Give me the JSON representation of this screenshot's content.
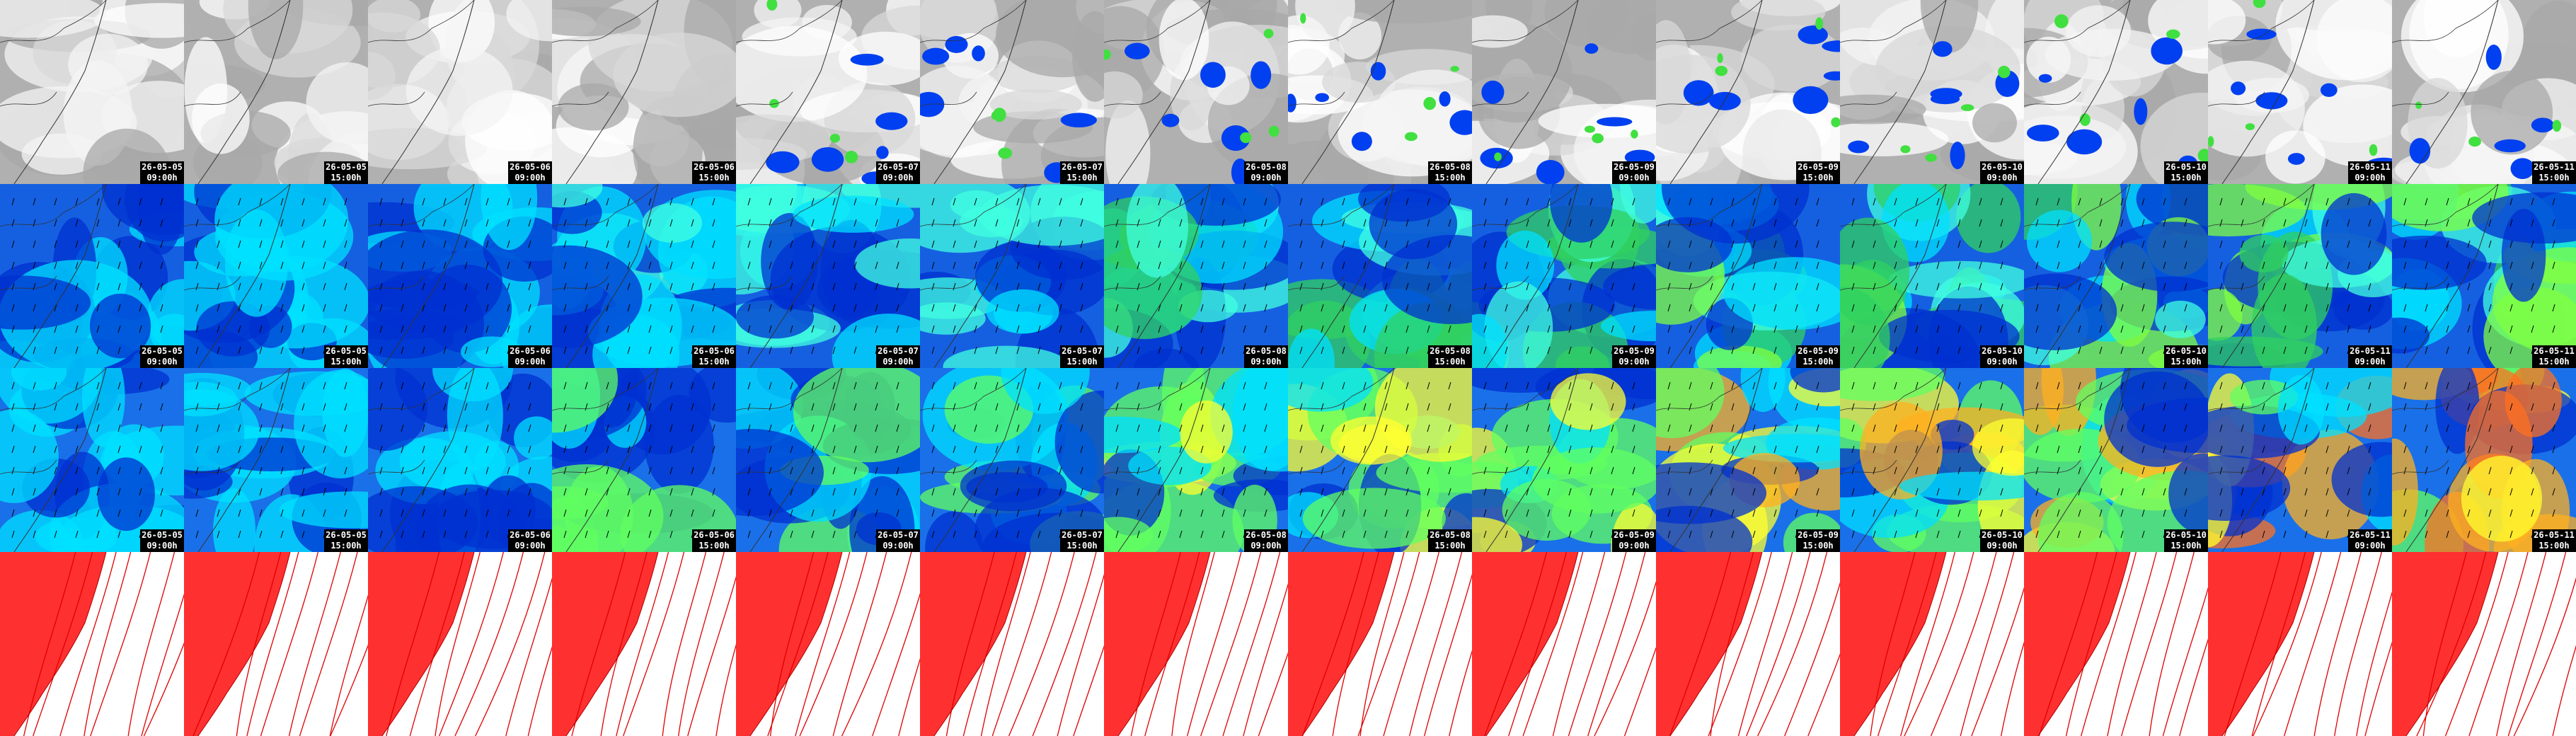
{
  "columns": [
    {
      "date": "26-05-05",
      "time": "09:00h"
    },
    {
      "date": "26-05-05",
      "time": "15:00h"
    },
    {
      "date": "26-05-06",
      "time": "09:00h"
    },
    {
      "date": "26-05-06",
      "time": "15:00h"
    },
    {
      "date": "26-05-07",
      "time": "09:00h"
    },
    {
      "date": "26-05-07",
      "time": "15:00h"
    },
    {
      "date": "26-05-08",
      "time": "09:00h"
    },
    {
      "date": "26-05-08",
      "time": "15:00h"
    },
    {
      "date": "26-05-09",
      "time": "09:00h"
    },
    {
      "date": "26-05-09",
      "time": "15:00h"
    },
    {
      "date": "26-05-10",
      "time": "09:00h"
    },
    {
      "date": "26-05-10",
      "time": "15:00h"
    },
    {
      "date": "26-05-11",
      "time": "09:00h"
    },
    {
      "date": "26-05-11",
      "time": "15:00h"
    }
  ]
}
